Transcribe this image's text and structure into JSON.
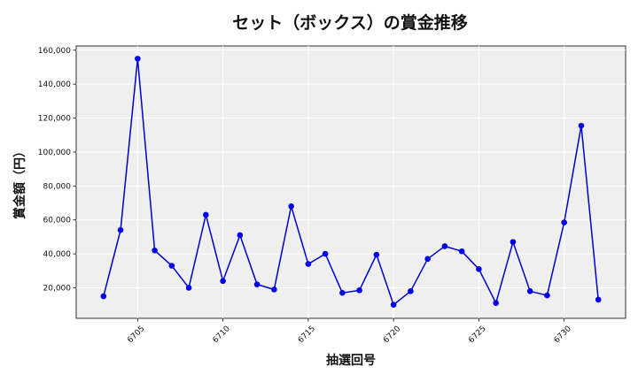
{
  "chart_data": {
    "type": "line",
    "title": "セット（ボックス）の賞金推移",
    "xlabel": "抽選回号",
    "ylabel": "賞金額（円）",
    "x": [
      6703,
      6704,
      6705,
      6706,
      6707,
      6708,
      6709,
      6710,
      6711,
      6712,
      6713,
      6714,
      6715,
      6716,
      6717,
      6718,
      6719,
      6720,
      6721,
      6722,
      6723,
      6724,
      6725,
      6726,
      6727,
      6728,
      6729,
      6730,
      6731,
      6732
    ],
    "values": [
      15000,
      54000,
      155000,
      42000,
      33000,
      20000,
      63000,
      24000,
      51000,
      22000,
      19000,
      68000,
      34000,
      40000,
      17000,
      18500,
      39500,
      10000,
      18000,
      37000,
      44500,
      41500,
      31000,
      11000,
      47000,
      18000,
      15500,
      58500,
      115500,
      13000
    ],
    "xlim": [
      6701.4,
      6733.6
    ],
    "ylim": [
      2000,
      162500
    ],
    "xticks": [
      6705,
      6710,
      6715,
      6720,
      6725,
      6730
    ],
    "xtick_labels": [
      "6705",
      "6710",
      "6715",
      "6720",
      "6725",
      "6730"
    ],
    "yticks": [
      20000,
      40000,
      60000,
      80000,
      100000,
      120000,
      140000,
      160000
    ],
    "ytick_labels": [
      "20,000",
      "40,000",
      "60,000",
      "80,000",
      "100,000",
      "120,000",
      "140,000",
      "160,000"
    ],
    "grid": true,
    "line_color": "#0000cc",
    "marker_color": "#0000ee",
    "plot_background": "#efefef"
  }
}
